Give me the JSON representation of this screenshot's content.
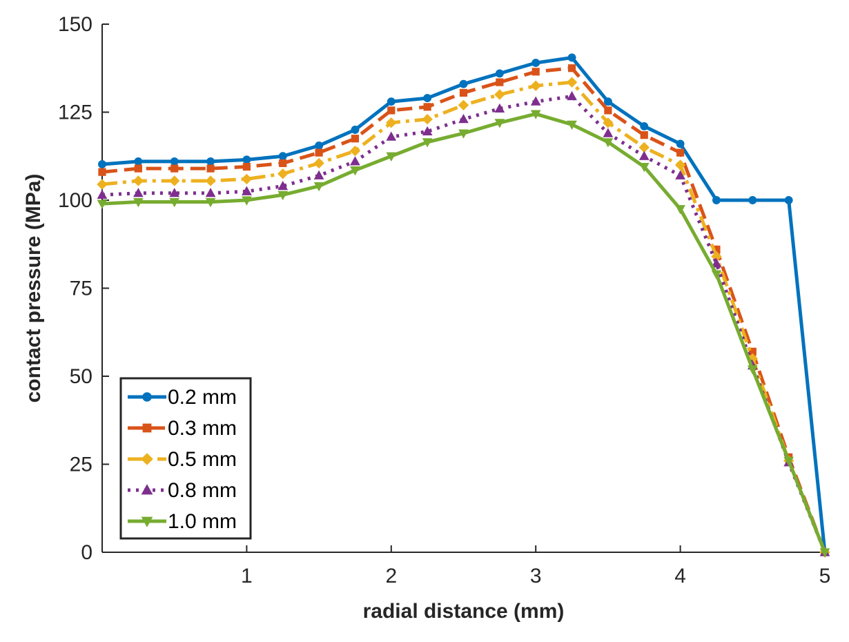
{
  "chart_data": {
    "type": "line",
    "xlabel": "radial distance (mm)",
    "ylabel": "contact pressure (MPa)",
    "xlim": [
      0,
      5
    ],
    "ylim": [
      0,
      150
    ],
    "xticks": [
      1,
      2,
      3,
      4,
      5
    ],
    "yticks": [
      0,
      25,
      50,
      75,
      100,
      125,
      150
    ],
    "grid": false,
    "legend_position": "bottom-left",
    "x": [
      0,
      0.25,
      0.5,
      0.75,
      1.0,
      1.25,
      1.5,
      1.75,
      2.0,
      2.25,
      2.5,
      2.75,
      3.0,
      3.25,
      3.5,
      3.75,
      4.0,
      4.25,
      4.5,
      4.75,
      5.0
    ],
    "series": [
      {
        "name": "0.2 mm",
        "color": "#0072BD",
        "line_style": "solid",
        "marker": "circle",
        "values": [
          110.2,
          111,
          111,
          111,
          111.5,
          112.5,
          115.5,
          120,
          128,
          129,
          133,
          136,
          139,
          140.5,
          128,
          121,
          116,
          100,
          100,
          100,
          0
        ]
      },
      {
        "name": "0.3 mm",
        "color": "#D95319",
        "line_style": "dashed",
        "marker": "square",
        "values": [
          108,
          109,
          109,
          109,
          109.5,
          110.5,
          113.5,
          117.5,
          125.5,
          126.5,
          130.5,
          133.5,
          136.5,
          137.5,
          125.5,
          118.5,
          113.5,
          86,
          57,
          27,
          0
        ]
      },
      {
        "name": "0.5 mm",
        "color": "#EDB120",
        "line_style": "dashdot",
        "marker": "diamond",
        "values": [
          104.5,
          105.5,
          105.5,
          105.5,
          106,
          107.5,
          110.5,
          114,
          122,
          123,
          127,
          130,
          132.5,
          133.5,
          122,
          115,
          110,
          84,
          55,
          26,
          0
        ]
      },
      {
        "name": "0.8 mm",
        "color": "#7E2F8E",
        "line_style": "dotted",
        "marker": "triangle-up",
        "values": [
          101.5,
          102,
          102,
          102,
          102.5,
          104,
          107,
          111,
          118,
          119.5,
          123,
          126,
          128,
          129.5,
          119,
          112.5,
          107,
          82,
          53,
          25.5,
          0
        ]
      },
      {
        "name": "1.0 mm",
        "color": "#77AC30",
        "line_style": "solid",
        "marker": "triangle-down",
        "values": [
          99,
          99.5,
          99.5,
          99.5,
          100,
          101.5,
          104,
          108.5,
          112.5,
          116.5,
          119,
          122,
          124.5,
          121.5,
          116.5,
          109.5,
          97.5,
          79,
          52,
          26,
          0
        ]
      }
    ]
  }
}
